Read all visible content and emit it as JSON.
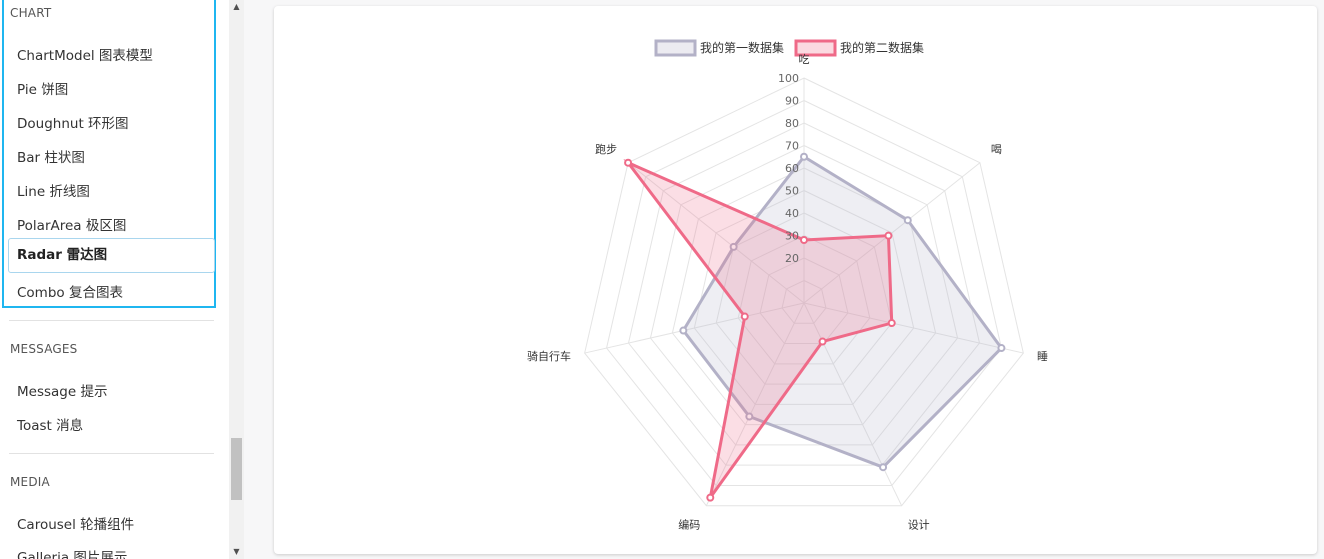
{
  "sidebar": {
    "sections": [
      {
        "title": "CHART",
        "items": [
          "ChartModel 图表模型",
          "Pie 饼图",
          "Doughnut 环形图",
          "Bar 柱状图",
          "Line 折线图",
          "PolarArea 极区图",
          "Radar 雷达图",
          "Combo 复合图表"
        ],
        "active": "Radar 雷达图"
      },
      {
        "title": "MESSAGES",
        "items": [
          "Message 提示",
          "Toast 消息"
        ]
      },
      {
        "title": "MEDIA",
        "items": [
          "Carousel 轮播组件",
          "Galleria 图片展示"
        ]
      }
    ]
  },
  "colors": {
    "accent": "#1fb6f0",
    "series1": "#b3b1c7",
    "series2": "#ef6a88"
  },
  "chart_data": {
    "type": "radar",
    "labels": [
      "吃",
      "喝",
      "睡",
      "设计",
      "编码",
      "骑自行车",
      "跑步"
    ],
    "series": [
      {
        "name": "我的第一数据集",
        "values": [
          65,
          59,
          90,
          81,
          56,
          55,
          40
        ]
      },
      {
        "name": "我的第二数据集",
        "values": [
          28,
          48,
          40,
          19,
          96,
          27,
          100
        ]
      }
    ],
    "r_ticks": [
      20,
      30,
      40,
      50,
      60,
      70,
      80,
      90,
      100
    ],
    "r_range": [
      0,
      100
    ],
    "legend": "top"
  }
}
